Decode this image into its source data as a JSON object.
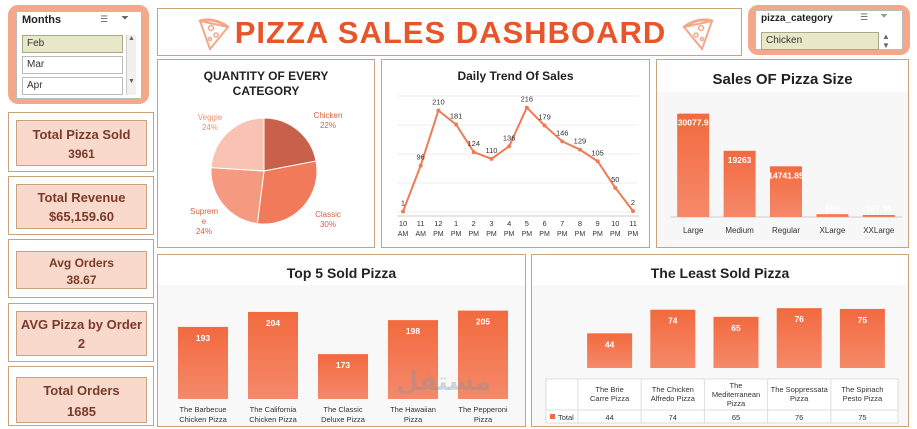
{
  "header": {
    "title": "PIZZA SALES DASHBOARD"
  },
  "months_slicer": {
    "title": "Months",
    "items": [
      "Feb",
      "Mar",
      "Apr"
    ],
    "selected": "Feb"
  },
  "category_slicer": {
    "title": "pizza_category",
    "selected": "Chicken"
  },
  "kpis": {
    "total_pizza_sold": {
      "label": "Total Pizza Sold",
      "value": "3961"
    },
    "total_revenue": {
      "label": "Total Revenue",
      "value": "$65,159.60"
    },
    "avg_orders": {
      "label": "Avg Orders",
      "value": "38.67"
    },
    "avg_pizza_by_order": {
      "label": "AVG Pizza by Order",
      "value": "2"
    },
    "total_orders": {
      "label": "Total Orders",
      "value": "1685"
    }
  },
  "watermark": {
    "text": "مستقل"
  },
  "colors": {
    "accent": "#e8552a",
    "bar": "#f26a3f",
    "slicer_bg": "#f2a889",
    "kpi_bg": "#f8d9cc",
    "border": "#c9a27e"
  },
  "chart_data": [
    {
      "id": "pie",
      "type": "pie",
      "title": "QUANTITY OF EVERY CATEGORY",
      "title_lines": [
        "QUANTITY OF EVERY",
        "CATEGORY"
      ],
      "slices": [
        {
          "label": "Chicken",
          "value": 22,
          "pct": "22%",
          "color": "#c8604a"
        },
        {
          "label": "Classic",
          "value": 30,
          "pct": "30%",
          "color": "#f07a5a"
        },
        {
          "label": "Supreme",
          "value": 24,
          "pct": "24%",
          "color": "#f59a80"
        },
        {
          "label": "Veggie",
          "value": 24,
          "pct": "24%",
          "color": "#f9c3b3"
        }
      ]
    },
    {
      "id": "trend",
      "type": "line",
      "title": "Daily Trend Of Sales",
      "x": [
        "10 AM",
        "11 AM",
        "12 PM",
        "1 PM",
        "2 PM",
        "3 PM",
        "4 PM",
        "5 PM",
        "6 PM",
        "7 PM",
        "8 PM",
        "9 PM",
        "10 PM",
        "11 PM"
      ],
      "x_top": [
        "10",
        "11",
        "12",
        "1",
        "2",
        "3",
        "4",
        "5",
        "6",
        "7",
        "8",
        "9",
        "10",
        "11"
      ],
      "x_bottom": [
        "AM",
        "AM",
        "PM",
        "PM",
        "PM",
        "PM",
        "PM",
        "PM",
        "PM",
        "PM",
        "PM",
        "PM",
        "PM",
        "PM"
      ],
      "values": [
        1,
        96,
        210,
        181,
        124,
        110,
        136,
        216,
        179,
        146,
        129,
        105,
        50,
        2
      ],
      "ylim": [
        0,
        240
      ]
    },
    {
      "id": "size",
      "type": "bar",
      "title": "Sales OF Pizza Size",
      "categories": [
        "Large",
        "Medium",
        "Regular",
        "XLarge",
        "XXLarge"
      ],
      "values": [
        30077.9,
        19263,
        14741.85,
        800,
        187.25
      ],
      "labels": [
        "30077.9",
        "19263",
        "14741.85",
        "800",
        "187.25"
      ],
      "ylim": [
        0,
        32000
      ]
    },
    {
      "id": "top5",
      "type": "bar",
      "title": "Top 5 Sold Pizza",
      "categories": [
        "The Barbecue Chicken Pizza",
        "The California Chicken Pizza",
        "The Classic Deluxe Pizza",
        "The Hawaiian Pizza",
        "The Pepperoni Pizza"
      ],
      "values": [
        193,
        204,
        173,
        198,
        205
      ],
      "ylim": [
        140,
        215
      ]
    },
    {
      "id": "least",
      "type": "bar",
      "title": "The Least Sold Pizza",
      "categories": [
        "The Brie Carre Pizza",
        "The Chicken Alfredo Pizza",
        "The Mediterranean Pizza",
        "The Soppressata Pizza",
        "The Spinach Pesto Pizza"
      ],
      "values": [
        44,
        74,
        65,
        76,
        75
      ],
      "ylim": [
        0,
        80
      ],
      "table_label": "Total"
    }
  ]
}
